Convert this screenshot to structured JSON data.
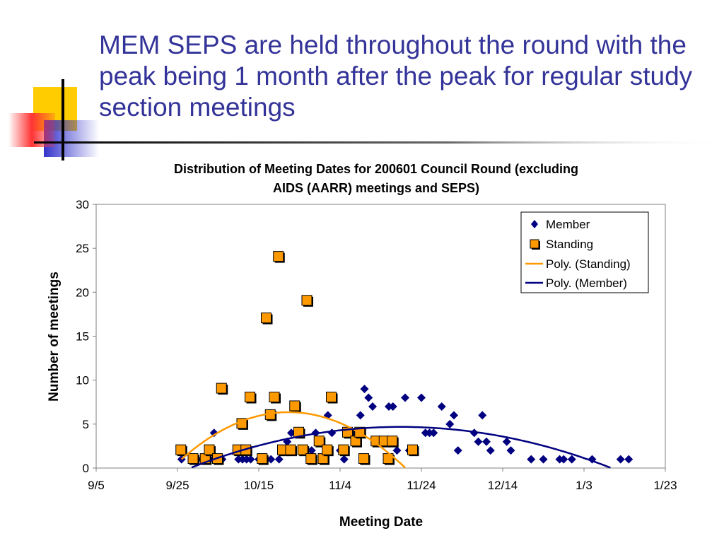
{
  "slide": {
    "title": "MEM SEPS are held throughout the round with the peak being 1 month after the peak for regular study section meetings"
  },
  "colors": {
    "title": "#333399",
    "member": "#000080",
    "standing": "#FF9900",
    "decor_yellow": "#FFCC00",
    "decor_blue": "#3333CC",
    "decor_red": "#FF3333"
  },
  "chart_data": {
    "type": "scatter",
    "title_lines": [
      "Distribution of Meeting Dates for 200601 Council Round (excluding",
      "AIDS (AARR) meetings and SEPS)"
    ],
    "xlabel": "Meeting Date",
    "ylabel": "Number of meetings",
    "x_ticks": [
      "9/5",
      "9/25",
      "10/15",
      "11/4",
      "11/24",
      "12/14",
      "1/3",
      "1/23"
    ],
    "xlim": [
      "2005-09-05",
      "2006-01-23"
    ],
    "ylim": [
      0,
      30
    ],
    "y_ticks": [
      0,
      5,
      10,
      15,
      20,
      25,
      30
    ],
    "grid": false,
    "legend": {
      "position": "top-right",
      "entries": [
        "Member",
        "Standing",
        "Poly. (Standing)",
        "Poly. (Member)"
      ]
    },
    "series": [
      {
        "name": "Member",
        "marker": "diamond",
        "points": [
          [
            "2005-09-26",
            1
          ],
          [
            "2005-09-29",
            1
          ],
          [
            "2005-10-01",
            1
          ],
          [
            "2005-10-03",
            1
          ],
          [
            "2005-10-04",
            4
          ],
          [
            "2005-10-06",
            1
          ],
          [
            "2005-10-10",
            1
          ],
          [
            "2005-10-11",
            1
          ],
          [
            "2005-10-12",
            1
          ],
          [
            "2005-10-13",
            1
          ],
          [
            "2005-10-15",
            1
          ],
          [
            "2005-10-18",
            1
          ],
          [
            "2005-10-20",
            1
          ],
          [
            "2005-10-22",
            3
          ],
          [
            "2005-10-23",
            4
          ],
          [
            "2005-10-26",
            2
          ],
          [
            "2005-10-28",
            2
          ],
          [
            "2005-10-29",
            4
          ],
          [
            "2005-11-01",
            6
          ],
          [
            "2005-11-02",
            4
          ],
          [
            "2005-11-04",
            2
          ],
          [
            "2005-11-05",
            1
          ],
          [
            "2005-11-07",
            4
          ],
          [
            "2005-11-09",
            6
          ],
          [
            "2005-11-10",
            9
          ],
          [
            "2005-11-11",
            8
          ],
          [
            "2005-11-12",
            7
          ],
          [
            "2005-11-16",
            7
          ],
          [
            "2005-11-17",
            7
          ],
          [
            "2005-11-18",
            2
          ],
          [
            "2005-11-20",
            8
          ],
          [
            "2005-11-21",
            2
          ],
          [
            "2005-11-24",
            8
          ],
          [
            "2005-11-25",
            4
          ],
          [
            "2005-11-26",
            4
          ],
          [
            "2005-11-27",
            4
          ],
          [
            "2005-11-29",
            7
          ],
          [
            "2005-12-01",
            5
          ],
          [
            "2005-12-02",
            6
          ],
          [
            "2005-12-03",
            2
          ],
          [
            "2005-12-07",
            4
          ],
          [
            "2005-12-08",
            3
          ],
          [
            "2005-12-09",
            6
          ],
          [
            "2005-12-10",
            3
          ],
          [
            "2005-12-11",
            2
          ],
          [
            "2005-12-15",
            3
          ],
          [
            "2005-12-16",
            2
          ],
          [
            "2005-12-21",
            1
          ],
          [
            "2005-12-24",
            1
          ],
          [
            "2005-12-28",
            1
          ],
          [
            "2005-12-29",
            1
          ],
          [
            "2005-12-31",
            1
          ],
          [
            "2006-01-05",
            1
          ],
          [
            "2006-01-12",
            1
          ],
          [
            "2006-01-14",
            1
          ]
        ]
      },
      {
        "name": "Standing",
        "marker": "square",
        "points": [
          [
            "2005-09-26",
            2
          ],
          [
            "2005-09-29",
            1
          ],
          [
            "2005-10-02",
            1
          ],
          [
            "2005-10-03",
            2
          ],
          [
            "2005-10-05",
            1
          ],
          [
            "2005-10-06",
            9
          ],
          [
            "2005-10-10",
            2
          ],
          [
            "2005-10-11",
            5
          ],
          [
            "2005-10-12",
            2
          ],
          [
            "2005-10-13",
            8
          ],
          [
            "2005-10-16",
            1
          ],
          [
            "2005-10-17",
            17
          ],
          [
            "2005-10-18",
            6
          ],
          [
            "2005-10-19",
            8
          ],
          [
            "2005-10-20",
            24
          ],
          [
            "2005-10-21",
            2
          ],
          [
            "2005-10-23",
            2
          ],
          [
            "2005-10-24",
            7
          ],
          [
            "2005-10-25",
            4
          ],
          [
            "2005-10-26",
            2
          ],
          [
            "2005-10-27",
            19
          ],
          [
            "2005-10-28",
            1
          ],
          [
            "2005-10-30",
            3
          ],
          [
            "2005-10-31",
            1
          ],
          [
            "2005-11-01",
            2
          ],
          [
            "2005-11-02",
            8
          ],
          [
            "2005-11-05",
            2
          ],
          [
            "2005-11-06",
            4
          ],
          [
            "2005-11-08",
            3
          ],
          [
            "2005-11-09",
            4
          ],
          [
            "2005-11-10",
            1
          ],
          [
            "2005-11-13",
            3
          ],
          [
            "2005-11-15",
            3
          ],
          [
            "2005-11-16",
            1
          ],
          [
            "2005-11-17",
            3
          ],
          [
            "2005-11-22",
            2
          ]
        ]
      }
    ],
    "trendlines": [
      {
        "name": "Poly. (Standing)",
        "of": "Standing",
        "order": 2
      },
      {
        "name": "Poly. (Member)",
        "of": "Member",
        "order": 2
      }
    ]
  }
}
